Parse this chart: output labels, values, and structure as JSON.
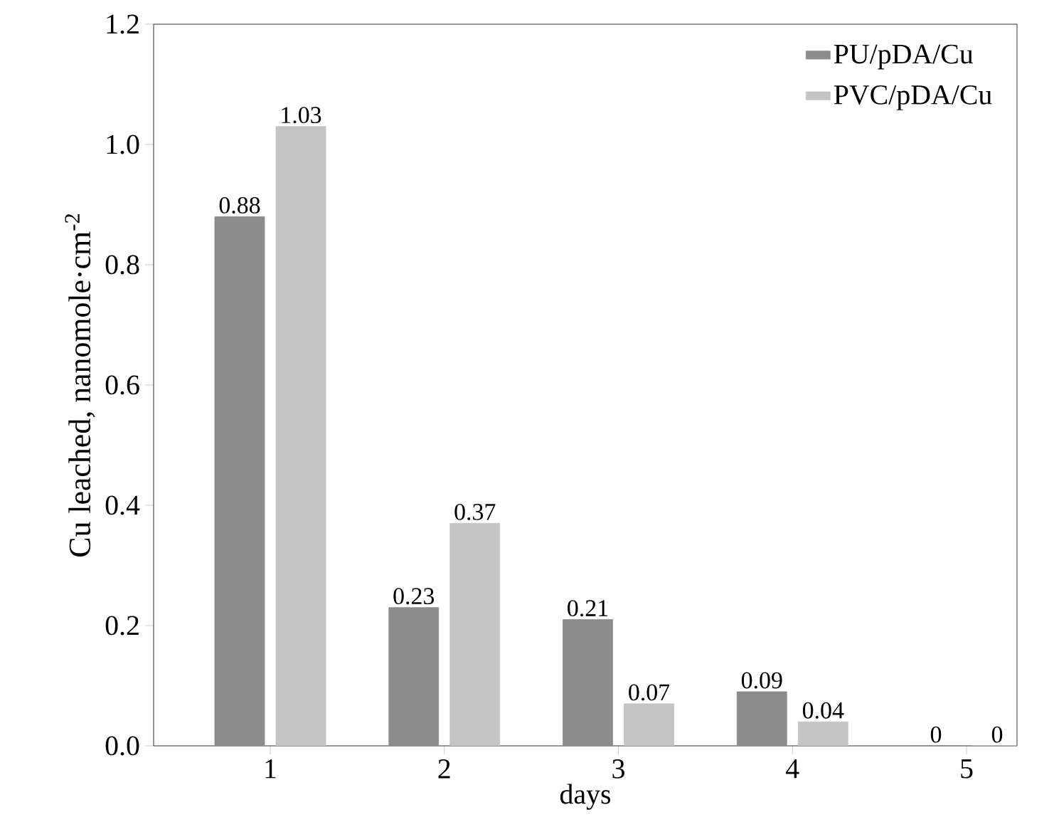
{
  "chart_data": {
    "type": "bar",
    "xlabel": "days",
    "ylabel": "Cu leached, nanomole·cm$^{-2}$",
    "categories": [
      "1",
      "2",
      "3",
      "4",
      "5"
    ],
    "series": [
      {
        "name": "PU/pDA/Cu",
        "color": "#8c8c8c",
        "values": [
          0.88,
          0.23,
          0.21,
          0.09,
          0
        ]
      },
      {
        "name": "PVC/pDA/Cu",
        "color": "#c4c4c4",
        "values": [
          1.03,
          0.37,
          0.07,
          0.04,
          0
        ]
      }
    ],
    "ylim": [
      0,
      1.2
    ],
    "yticks": [
      {
        "value": 0,
        "label": "0.0"
      },
      {
        "value": 0.2,
        "label": "0.2"
      },
      {
        "value": 0.4,
        "label": "0.4"
      },
      {
        "value": 0.6,
        "label": "0.6"
      },
      {
        "value": 0.8,
        "label": "0.8"
      },
      {
        "value": 1.0,
        "label": "1.0"
      },
      {
        "value": 1.2,
        "label": "1.2"
      }
    ],
    "data_labels": true,
    "legend": "top right",
    "grid": false
  }
}
